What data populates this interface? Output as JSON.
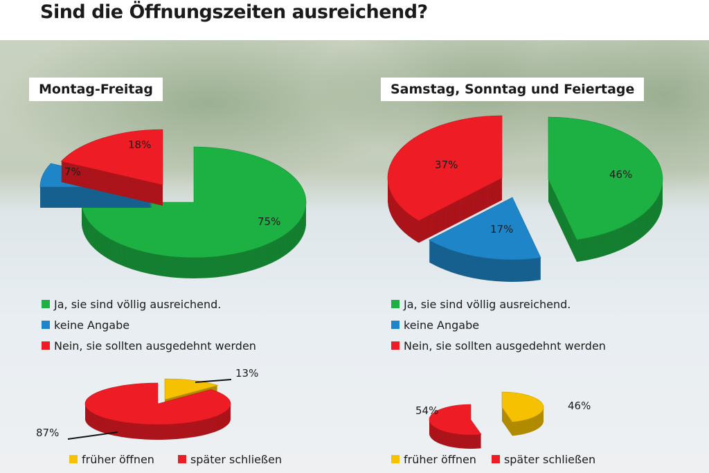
{
  "title": "Sind die Öffnungszeiten ausreichend?",
  "colors": {
    "green": "#1db043",
    "blue": "#1e86c8",
    "red": "#ee1c24",
    "yellow": "#f5c100"
  },
  "chart_data": [
    {
      "type": "pie",
      "title": "Montag-Freitag",
      "categories": [
        "Ja, sie sind völlig ausreichend.",
        "keine Angabe",
        "Nein, sie sollten ausgedehnt werden"
      ],
      "values": [
        75,
        7,
        18
      ],
      "labels": [
        "75%",
        "7%",
        "18%"
      ],
      "colors": [
        "#1db043",
        "#1e86c8",
        "#ee1c24"
      ]
    },
    {
      "type": "pie",
      "title": "Samstag, Sonntag und Feiertage",
      "categories": [
        "Ja, sie sind völlig ausreichend.",
        "keine Angabe",
        "Nein, sie sollten ausgedehnt werden"
      ],
      "values": [
        46,
        17,
        37
      ],
      "labels": [
        "46%",
        "17%",
        "37%"
      ],
      "colors": [
        "#1db043",
        "#1e86c8",
        "#ee1c24"
      ]
    },
    {
      "type": "pie",
      "categories": [
        "früher öffnen",
        "später schließen"
      ],
      "values": [
        13,
        87
      ],
      "labels": [
        "13%",
        "87%"
      ],
      "colors": [
        "#f5c100",
        "#ee1c24"
      ]
    },
    {
      "type": "pie",
      "categories": [
        "früher öffnen",
        "später schließen"
      ],
      "values": [
        46,
        54
      ],
      "labels": [
        "46%",
        "54%"
      ],
      "colors": [
        "#f5c100",
        "#ee1c24"
      ]
    }
  ]
}
